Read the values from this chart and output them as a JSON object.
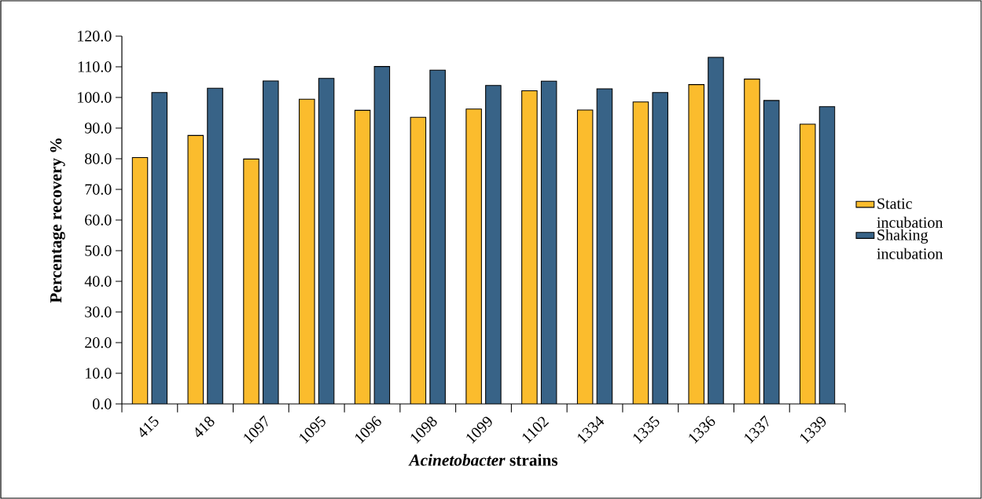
{
  "chart_data": {
    "type": "bar",
    "xlabel": "*Acinetobacter* strains",
    "ylabel": "Percentage recovery %",
    "categories": [
      "415",
      "418",
      "1097",
      "1095",
      "1096",
      "1098",
      "1099",
      "1102",
      "1334",
      "1335",
      "1336",
      "1337",
      "1339"
    ],
    "series": [
      {
        "name": "Static incubation",
        "color": "#fbbc2d",
        "values": [
          80.4,
          87.6,
          79.9,
          99.4,
          95.8,
          93.5,
          96.2,
          102.2,
          95.9,
          98.5,
          104.2,
          106.0,
          91.3
        ]
      },
      {
        "name": "Shaking incubation",
        "color": "#386387",
        "values": [
          101.6,
          103.0,
          105.4,
          106.2,
          110.1,
          108.9,
          103.9,
          105.3,
          102.8,
          101.6,
          113.1,
          99.0,
          97.0
        ]
      }
    ],
    "ylim": [
      0,
      120
    ],
    "yticks": [
      {
        "value": 0,
        "label": "0.0"
      },
      {
        "value": 10,
        "label": "10.0"
      },
      {
        "value": 20,
        "label": "20.0"
      },
      {
        "value": 30,
        "label": "30.0"
      },
      {
        "value": 40,
        "label": "40.0"
      },
      {
        "value": 50,
        "label": "50.0"
      },
      {
        "value": 60,
        "label": "60.0"
      },
      {
        "value": 70,
        "label": "70.0"
      },
      {
        "value": 80,
        "label": "80.0"
      },
      {
        "value": 90,
        "label": "90.0"
      },
      {
        "value": 100,
        "label": "100.0"
      },
      {
        "value": 110,
        "label": "110.0"
      },
      {
        "value": 120,
        "label": "120.0"
      }
    ],
    "legend": "right",
    "grid": false
  }
}
